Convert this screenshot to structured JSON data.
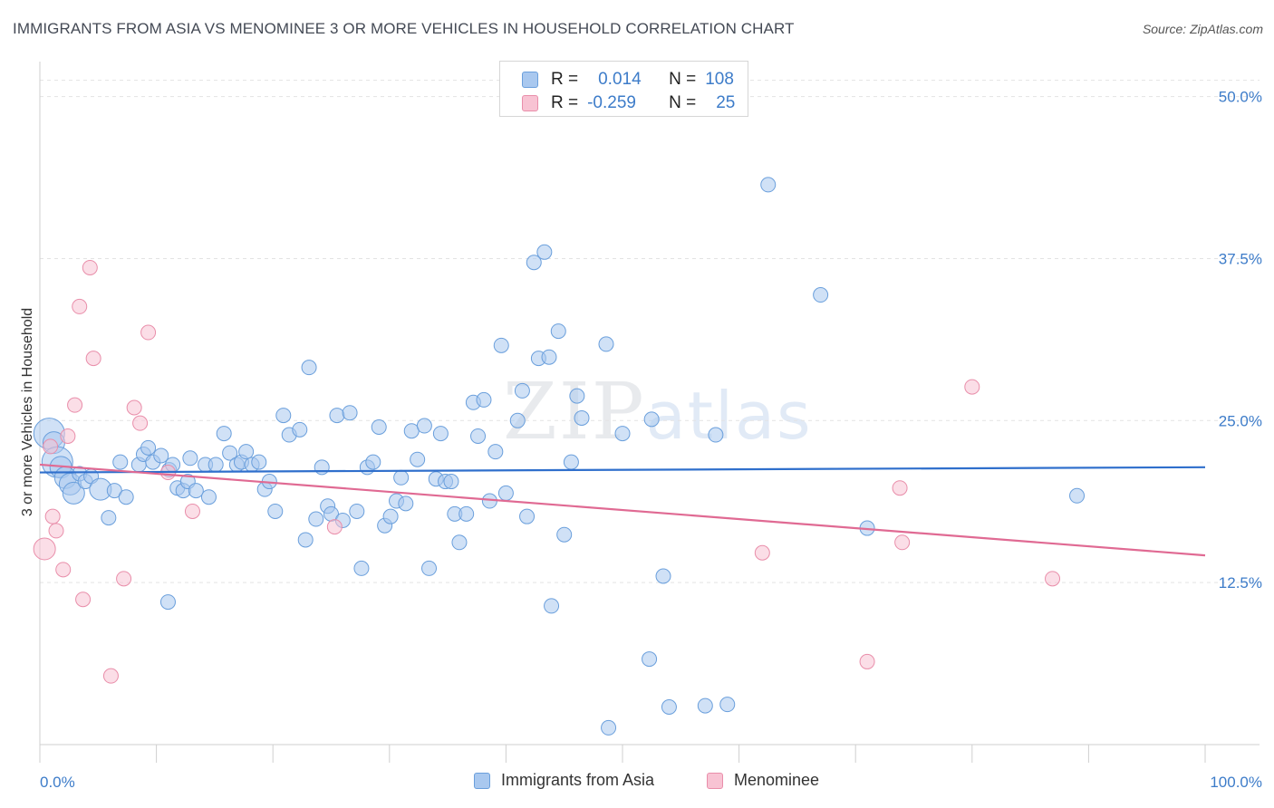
{
  "title": "IMMIGRANTS FROM ASIA VS MENOMINEE 3 OR MORE VEHICLES IN HOUSEHOLD CORRELATION CHART",
  "source": "Source: ZipAtlas.com",
  "watermark": {
    "zip": "ZIP",
    "atlas": "atlas"
  },
  "colors": {
    "asia_fill": "#a9c8ef",
    "asia_stroke": "#6a9fdc",
    "asia_line": "#2f6fcc",
    "menominee_fill": "#f8c3d3",
    "menominee_stroke": "#e98eaa",
    "menominee_line": "#e06a93",
    "tick_text": "#3d7cc9",
    "grid": "#e3e3e3"
  },
  "legend": {
    "rows": [
      {
        "r_label": "R =",
        "r_value": "0.014",
        "n_label": "N =",
        "n_value": "108"
      },
      {
        "r_label": "R =",
        "r_value": "-0.259",
        "n_label": "N =",
        "n_value": "25"
      }
    ]
  },
  "bottom_legend": {
    "asia": "Immigrants from Asia",
    "menominee": "Menominee"
  },
  "chart_data": {
    "type": "scatter",
    "xlabel": "",
    "ylabel": "3 or more Vehicles in Household",
    "xlim": [
      0,
      100
    ],
    "ylim": [
      0,
      52
    ],
    "x_tick_labels": [
      "0.0%",
      "100.0%"
    ],
    "y_ticks": [
      12.5,
      25.0,
      37.5,
      50.0
    ],
    "y_tick_labels": [
      "12.5%",
      "25.0%",
      "37.5%",
      "50.0%"
    ],
    "grid": true,
    "legend_position": "top-center",
    "series": [
      {
        "name": "Immigrants from Asia",
        "color": "#a9c8ef",
        "trend": {
          "x": [
            0,
            100
          ],
          "y": [
            21.0,
            21.4
          ]
        },
        "points": [
          [
            0.8,
            24.0,
            3
          ],
          [
            1.2,
            23.3,
            2
          ],
          [
            1.5,
            21.8,
            3
          ],
          [
            1.8,
            21.4,
            2
          ],
          [
            2.2,
            20.6,
            2
          ],
          [
            2.6,
            20.1,
            2
          ],
          [
            2.9,
            19.4,
            2
          ],
          [
            3.4,
            20.9,
            1
          ],
          [
            3.9,
            20.3,
            1
          ],
          [
            4.4,
            20.7,
            1
          ],
          [
            5.2,
            19.7,
            2
          ],
          [
            5.9,
            17.5,
            1
          ],
          [
            6.4,
            19.6,
            1
          ],
          [
            6.9,
            21.8,
            1
          ],
          [
            7.4,
            19.1,
            1
          ],
          [
            8.5,
            21.6,
            1
          ],
          [
            8.9,
            22.4,
            1
          ],
          [
            9.3,
            22.9,
            1
          ],
          [
            9.7,
            21.8,
            1
          ],
          [
            10.4,
            22.3,
            1
          ],
          [
            11.1,
            21.2,
            1
          ],
          [
            11.4,
            21.6,
            1
          ],
          [
            11.0,
            11.0,
            1
          ],
          [
            11.8,
            19.8,
            1
          ],
          [
            12.3,
            19.6,
            1
          ],
          [
            12.7,
            20.3,
            1
          ],
          [
            12.9,
            22.1,
            1
          ],
          [
            13.4,
            19.6,
            1
          ],
          [
            14.2,
            21.6,
            1
          ],
          [
            14.5,
            19.1,
            1
          ],
          [
            15.1,
            21.6,
            1
          ],
          [
            15.8,
            24.0,
            1
          ],
          [
            16.3,
            22.5,
            1
          ],
          [
            16.9,
            21.6,
            1
          ],
          [
            17.3,
            21.8,
            1
          ],
          [
            17.7,
            22.6,
            1
          ],
          [
            18.2,
            21.6,
            1
          ],
          [
            18.8,
            21.8,
            1
          ],
          [
            19.3,
            19.7,
            1
          ],
          [
            19.7,
            20.3,
            1
          ],
          [
            20.2,
            18.0,
            1
          ],
          [
            20.9,
            25.4,
            1
          ],
          [
            21.4,
            23.9,
            1
          ],
          [
            22.3,
            24.3,
            1
          ],
          [
            22.8,
            15.8,
            1
          ],
          [
            23.1,
            29.1,
            1
          ],
          [
            23.7,
            17.4,
            1
          ],
          [
            24.2,
            21.4,
            1
          ],
          [
            24.7,
            18.4,
            1
          ],
          [
            25.0,
            17.8,
            1
          ],
          [
            25.5,
            25.4,
            1
          ],
          [
            26.0,
            17.3,
            1
          ],
          [
            26.6,
            25.6,
            1
          ],
          [
            27.2,
            18.0,
            1
          ],
          [
            27.6,
            13.6,
            1
          ],
          [
            28.1,
            21.4,
            1
          ],
          [
            28.6,
            21.8,
            1
          ],
          [
            29.1,
            24.5,
            1
          ],
          [
            29.6,
            16.9,
            1
          ],
          [
            30.1,
            17.6,
            1
          ],
          [
            30.6,
            18.8,
            1
          ],
          [
            31.0,
            20.6,
            1
          ],
          [
            31.4,
            18.6,
            1
          ],
          [
            31.9,
            24.2,
            1
          ],
          [
            32.4,
            22.0,
            1
          ],
          [
            33.0,
            24.6,
            1
          ],
          [
            33.4,
            13.6,
            1
          ],
          [
            34.0,
            20.5,
            1
          ],
          [
            34.4,
            24.0,
            1
          ],
          [
            34.8,
            20.3,
            1
          ],
          [
            35.3,
            20.3,
            1
          ],
          [
            35.6,
            17.8,
            1
          ],
          [
            36.0,
            15.6,
            1
          ],
          [
            36.6,
            17.8,
            1
          ],
          [
            37.2,
            26.4,
            1
          ],
          [
            37.6,
            23.8,
            1
          ],
          [
            38.1,
            26.6,
            1
          ],
          [
            38.6,
            18.8,
            1
          ],
          [
            39.1,
            22.6,
            1
          ],
          [
            39.6,
            30.8,
            1
          ],
          [
            40.0,
            19.4,
            1
          ],
          [
            41.0,
            25.0,
            1
          ],
          [
            41.4,
            27.3,
            1
          ],
          [
            41.8,
            17.6,
            1
          ],
          [
            42.4,
            37.2,
            1
          ],
          [
            42.8,
            29.8,
            1
          ],
          [
            43.3,
            38.0,
            1
          ],
          [
            43.7,
            29.9,
            1
          ],
          [
            44.5,
            31.9,
            1
          ],
          [
            45.0,
            16.2,
            1
          ],
          [
            45.6,
            21.8,
            1
          ],
          [
            46.1,
            26.9,
            1
          ],
          [
            46.5,
            25.2,
            1
          ],
          [
            48.6,
            30.9,
            1
          ],
          [
            50.0,
            24.0,
            1
          ],
          [
            52.5,
            25.1,
            1
          ],
          [
            53.5,
            13.0,
            1
          ],
          [
            58.0,
            23.9,
            1
          ],
          [
            62.5,
            43.2,
            1
          ],
          [
            67.0,
            34.7,
            1
          ],
          [
            71.0,
            16.7,
            1
          ],
          [
            89.0,
            19.2,
            1
          ],
          [
            43.9,
            10.7,
            1
          ],
          [
            52.3,
            6.6,
            1
          ],
          [
            54.0,
            2.9,
            1
          ],
          [
            57.1,
            3.0,
            1
          ],
          [
            59.0,
            3.1,
            1
          ],
          [
            48.8,
            1.3,
            1
          ]
        ]
      },
      {
        "name": "Menominee",
        "color": "#f8c3d3",
        "trend": {
          "x": [
            0,
            100
          ],
          "y": [
            21.6,
            14.6
          ]
        },
        "points": [
          [
            0.4,
            15.1,
            2
          ],
          [
            0.9,
            23.0,
            1
          ],
          [
            1.1,
            17.6,
            1
          ],
          [
            1.4,
            16.5,
            1
          ],
          [
            2.0,
            13.5,
            1
          ],
          [
            2.4,
            23.8,
            1
          ],
          [
            3.0,
            26.2,
            1
          ],
          [
            3.4,
            33.8,
            1
          ],
          [
            3.7,
            11.2,
            1
          ],
          [
            4.3,
            36.8,
            1
          ],
          [
            4.6,
            29.8,
            1
          ],
          [
            6.1,
            5.3,
            1
          ],
          [
            7.2,
            12.8,
            1
          ],
          [
            8.1,
            26.0,
            1
          ],
          [
            8.6,
            24.8,
            1
          ],
          [
            9.3,
            31.8,
            1
          ],
          [
            11.0,
            21.0,
            1
          ],
          [
            13.1,
            18.0,
            1
          ],
          [
            25.3,
            16.8,
            1
          ],
          [
            62.0,
            14.8,
            1
          ],
          [
            71.0,
            6.4,
            1
          ],
          [
            73.8,
            19.8,
            1
          ],
          [
            74.0,
            15.6,
            1
          ],
          [
            80.0,
            27.6,
            1
          ],
          [
            86.9,
            12.8,
            1
          ]
        ]
      }
    ]
  }
}
